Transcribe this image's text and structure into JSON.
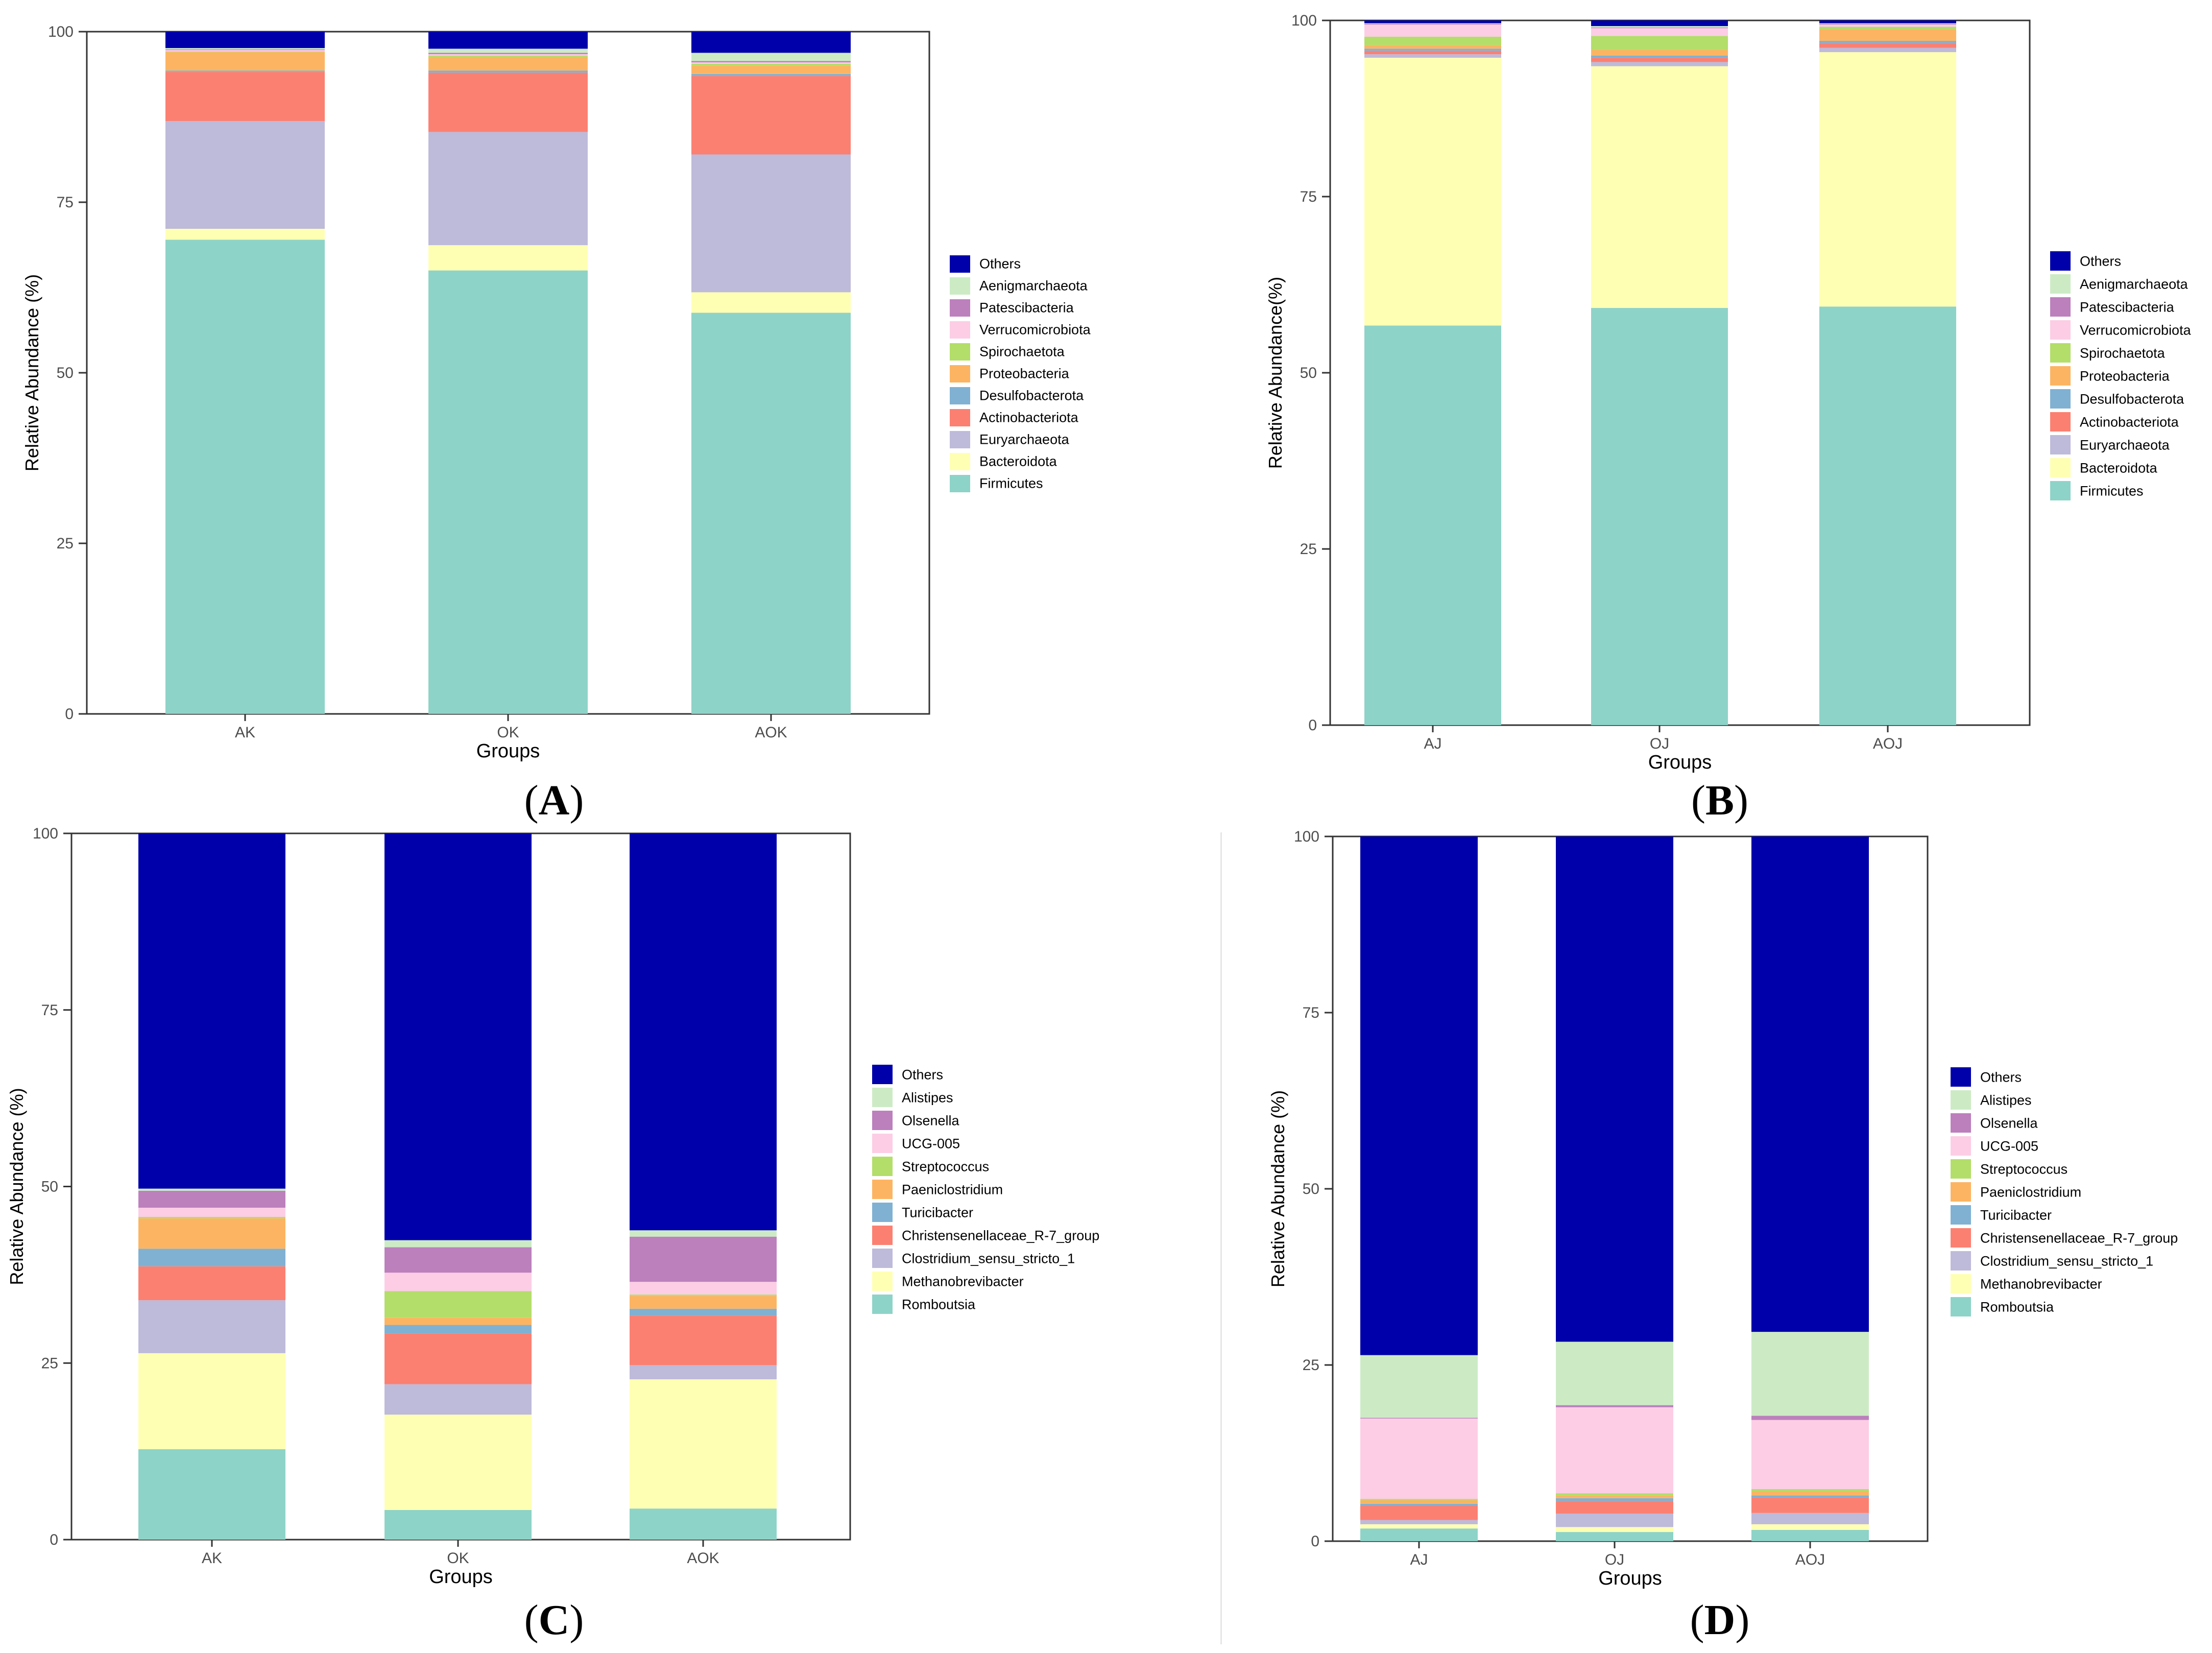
{
  "figure": {
    "panels": [
      {
        "id": "A",
        "label_open": "(",
        "label_letter": "A",
        "label_close": ")"
      },
      {
        "id": "B",
        "label_open": "(",
        "label_letter": "B",
        "label_close": ")"
      },
      {
        "id": "C",
        "label_open": "(",
        "label_letter": "C",
        "label_close": ")"
      },
      {
        "id": "D",
        "label_open": "(",
        "label_letter": "D",
        "label_close": ")"
      }
    ]
  },
  "chart_data": [
    {
      "type": "bar",
      "stacked": true,
      "panel": "A",
      "title": "",
      "xlabel": "Groups",
      "ylabel": "Relative Abundance (%)",
      "ylim": [
        0,
        100
      ],
      "yticks": [
        0,
        25,
        50,
        75,
        100
      ],
      "categories": [
        "AK",
        "OK",
        "AOK"
      ],
      "legend_position": "right",
      "series": [
        {
          "name": "Firmicutes",
          "color": "#8ed3c7",
          "values": [
            69.5,
            65.0,
            58.8
          ]
        },
        {
          "name": "Bacteroidota",
          "color": "#ffffb3",
          "values": [
            1.6,
            3.7,
            3.0
          ]
        },
        {
          "name": "Euryarchaeota",
          "color": "#bebada",
          "values": [
            15.8,
            16.6,
            20.2
          ]
        },
        {
          "name": "Actinobacteriota",
          "color": "#fb8072",
          "values": [
            7.2,
            8.7,
            11.5
          ]
        },
        {
          "name": "Desulfobacterota",
          "color": "#80b1d3",
          "values": [
            0.2,
            0.3,
            0.3
          ]
        },
        {
          "name": "Proteobacteria",
          "color": "#fdb462",
          "values": [
            2.7,
            2.0,
            1.2
          ]
        },
        {
          "name": "Spirochaetota",
          "color": "#b3de69",
          "values": [
            0.1,
            0.2,
            0.3
          ]
        },
        {
          "name": "Verrucomicrobiota",
          "color": "#fccde5",
          "values": [
            0.2,
            0.2,
            0.2
          ]
        },
        {
          "name": "Patescibacteria",
          "color": "#bc80bd",
          "values": [
            0.1,
            0.2,
            0.2
          ]
        },
        {
          "name": "Aenigmarchaeota",
          "color": "#ccebc5",
          "values": [
            0.2,
            0.6,
            1.2
          ]
        },
        {
          "name": "Others",
          "color": "#0000aa",
          "values": [
            2.4,
            2.5,
            3.1
          ]
        }
      ]
    },
    {
      "type": "bar",
      "stacked": true,
      "panel": "B",
      "title": "",
      "xlabel": "Groups",
      "ylabel": "Relative Abundance(%)",
      "ylim": [
        0,
        100
      ],
      "yticks": [
        0,
        25,
        50,
        75,
        100
      ],
      "categories": [
        "AJ",
        "OJ",
        "AOJ"
      ],
      "legend_position": "right",
      "series": [
        {
          "name": "Firmicutes",
          "color": "#8ed3c7",
          "values": [
            56.7,
            59.2,
            59.4
          ]
        },
        {
          "name": "Bacteroidota",
          "color": "#ffffb3",
          "values": [
            38.0,
            34.3,
            36.1
          ]
        },
        {
          "name": "Euryarchaeota",
          "color": "#bebada",
          "values": [
            0.5,
            0.6,
            0.6
          ]
        },
        {
          "name": "Actinobacteriota",
          "color": "#fb8072",
          "values": [
            0.5,
            0.6,
            0.7
          ]
        },
        {
          "name": "Desulfobacterota",
          "color": "#80b1d3",
          "values": [
            0.3,
            0.3,
            0.3
          ]
        },
        {
          "name": "Proteobacteria",
          "color": "#fdb462",
          "values": [
            0.5,
            0.8,
            1.6
          ]
        },
        {
          "name": "Spirochaetota",
          "color": "#b3de69",
          "values": [
            1.2,
            2.0,
            0.4
          ]
        },
        {
          "name": "Verrucomicrobiota",
          "color": "#fccde5",
          "values": [
            1.7,
            1.1,
            0.3
          ]
        },
        {
          "name": "Patescibacteria",
          "color": "#bc80bd",
          "values": [
            0.1,
            0.1,
            0.1
          ]
        },
        {
          "name": "Aenigmarchaeota",
          "color": "#ccebc5",
          "values": [
            0.1,
            0.2,
            0.1
          ]
        },
        {
          "name": "Others",
          "color": "#0000aa",
          "values": [
            0.4,
            0.8,
            0.4
          ]
        }
      ]
    },
    {
      "type": "bar",
      "stacked": true,
      "panel": "C",
      "title": "",
      "xlabel": "Groups",
      "ylabel": "Relative Abundance (%)",
      "ylim": [
        0,
        100
      ],
      "yticks": [
        0,
        25,
        50,
        75,
        100
      ],
      "categories": [
        "AK",
        "OK",
        "AOK"
      ],
      "legend_position": "right",
      "series": [
        {
          "name": "Romboutsia",
          "color": "#8ed3c7",
          "values": [
            12.8,
            4.2,
            4.4
          ]
        },
        {
          "name": "Methanobrevibacter",
          "color": "#ffffb3",
          "values": [
            13.6,
            13.5,
            18.3
          ]
        },
        {
          "name": "Clostridium_sensu_stricto_1",
          "color": "#bebada",
          "values": [
            7.5,
            4.3,
            2.0
          ]
        },
        {
          "name": "Christensenellaceae_R-7_group",
          "color": "#fb8072",
          "values": [
            4.8,
            7.2,
            7.0
          ]
        },
        {
          "name": "Turicibacter",
          "color": "#80b1d3",
          "values": [
            2.5,
            1.2,
            1.0
          ]
        },
        {
          "name": "Paeniclostridium",
          "color": "#fdb462",
          "values": [
            4.3,
            1.0,
            1.8
          ]
        },
        {
          "name": "Streptococcus",
          "color": "#b3de69",
          "values": [
            0.2,
            3.8,
            0.2
          ]
        },
        {
          "name": "UCG-005",
          "color": "#fccde5",
          "values": [
            1.3,
            2.6,
            1.8
          ]
        },
        {
          "name": "Olsenella",
          "color": "#bc80bd",
          "values": [
            2.4,
            3.6,
            6.4
          ]
        },
        {
          "name": "Alistipes",
          "color": "#ccebc5",
          "values": [
            0.3,
            1.0,
            0.9
          ]
        },
        {
          "name": "Others",
          "color": "#0000aa",
          "values": [
            50.3,
            57.6,
            56.2
          ]
        }
      ]
    },
    {
      "type": "bar",
      "stacked": true,
      "panel": "D",
      "title": "",
      "xlabel": "Groups",
      "ylabel": "Relative Abundance (%)",
      "ylim": [
        0,
        100
      ],
      "yticks": [
        0,
        25,
        50,
        75,
        100
      ],
      "categories": [
        "AJ",
        "OJ",
        "AOJ"
      ],
      "legend_position": "right",
      "series": [
        {
          "name": "Romboutsia",
          "color": "#8ed3c7",
          "values": [
            1.8,
            1.3,
            1.6
          ]
        },
        {
          "name": "Methanobrevibacter",
          "color": "#ffffb3",
          "values": [
            0.6,
            0.7,
            0.8
          ]
        },
        {
          "name": "Clostridium_sensu_stricto_1",
          "color": "#bebada",
          "values": [
            0.6,
            1.9,
            1.6
          ]
        },
        {
          "name": "Christensenellaceae_R-7_group",
          "color": "#fb8072",
          "values": [
            2.0,
            1.8,
            2.2
          ]
        },
        {
          "name": "Turicibacter",
          "color": "#80b1d3",
          "values": [
            0.3,
            0.4,
            0.3
          ]
        },
        {
          "name": "Paeniclostridium",
          "color": "#fdb462",
          "values": [
            0.5,
            0.4,
            0.6
          ]
        },
        {
          "name": "Streptococcus",
          "color": "#b3de69",
          "values": [
            0.2,
            0.3,
            0.3
          ]
        },
        {
          "name": "UCG-005",
          "color": "#fccde5",
          "values": [
            11.4,
            12.2,
            9.8
          ]
        },
        {
          "name": "Olsenella",
          "color": "#bc80bd",
          "values": [
            0.1,
            0.3,
            0.6
          ]
        },
        {
          "name": "Alistipes",
          "color": "#ccebc5",
          "values": [
            8.9,
            9.0,
            11.9
          ]
        },
        {
          "name": "Others",
          "color": "#0000aa",
          "values": [
            73.6,
            71.7,
            70.3
          ]
        }
      ]
    }
  ]
}
